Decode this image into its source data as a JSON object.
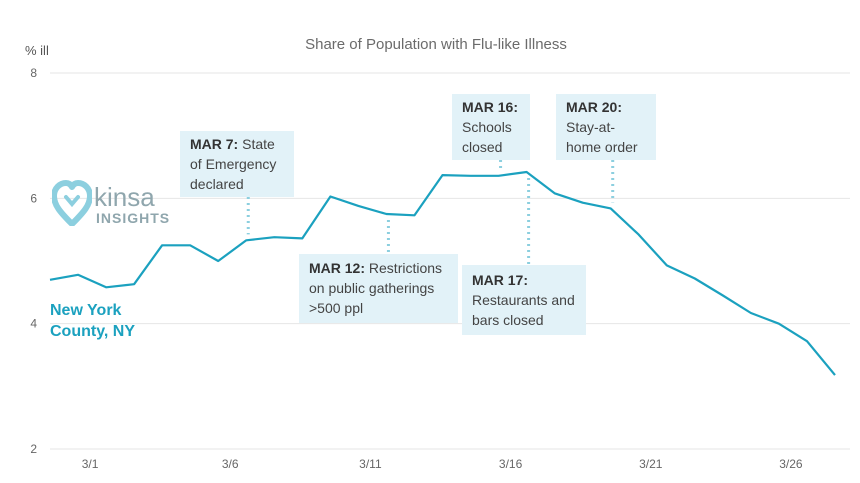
{
  "chart_data": {
    "type": "line",
    "title": "Share of Population with Flu-like Illness",
    "ylabel": "% ill",
    "xlabel": "",
    "ylim": [
      2,
      8
    ],
    "yticks": [
      2,
      4,
      6,
      8
    ],
    "xtick_labels": [
      "3/1",
      "3/6",
      "3/11",
      "3/16",
      "3/21",
      "3/26"
    ],
    "grid": true,
    "series": [
      {
        "name": "New York County, NY",
        "color": "#1ba1bf",
        "x": [
          "2/29",
          "3/1",
          "3/2",
          "3/3",
          "3/4",
          "3/5",
          "3/6",
          "3/7",
          "3/8",
          "3/9",
          "3/10",
          "3/11",
          "3/12",
          "3/13",
          "3/14",
          "3/15",
          "3/16",
          "3/17",
          "3/18",
          "3/19",
          "3/20",
          "3/21",
          "3/22",
          "3/23",
          "3/24",
          "3/25",
          "3/26",
          "3/27",
          "3/28"
        ],
        "values": [
          4.7,
          4.78,
          4.58,
          4.63,
          5.25,
          5.25,
          5.0,
          5.33,
          5.38,
          5.36,
          6.03,
          5.88,
          5.75,
          5.73,
          6.37,
          6.36,
          6.36,
          6.42,
          6.08,
          5.93,
          5.84,
          5.42,
          4.93,
          4.72,
          4.45,
          4.17,
          4.0,
          3.72,
          3.18
        ]
      }
    ],
    "annotations": [
      {
        "date_index": 7,
        "label": "MAR 7:",
        "text": "State of Emergency declared"
      },
      {
        "date_index": 12,
        "label": "MAR 12:",
        "text": "Restrictions on public gatherings >500 ppl"
      },
      {
        "date_index": 16,
        "label": "MAR 16:",
        "text": "Schools closed"
      },
      {
        "date_index": 17,
        "label": "MAR 17:",
        "text": "Restaurants and bars closed"
      },
      {
        "date_index": 20,
        "label": "MAR 20:",
        "text": "Stay-at-home order"
      }
    ]
  },
  "annotations": {
    "mar7": {
      "date": "MAR 7:",
      "line1": "State",
      "line2": "of Emergency",
      "line3": "declared"
    },
    "mar12": {
      "date": "MAR 12:",
      "line1": "Restrictions",
      "line2": "on public gatherings",
      "line3": ">500 ppl"
    },
    "mar16": {
      "date": "MAR 16:",
      "line1": "Schools",
      "line2": "closed"
    },
    "mar17": {
      "date": "MAR 17:",
      "line1": "Restaurants and",
      "line2": "bars closed"
    },
    "mar20": {
      "date": "MAR 20:",
      "line1": "Stay-at-",
      "line2": "home order"
    }
  },
  "series_label": {
    "line1": "New York",
    "line2": "County, NY"
  },
  "logo": {
    "word": "kinsa",
    "sub": "INSIGHTS"
  }
}
